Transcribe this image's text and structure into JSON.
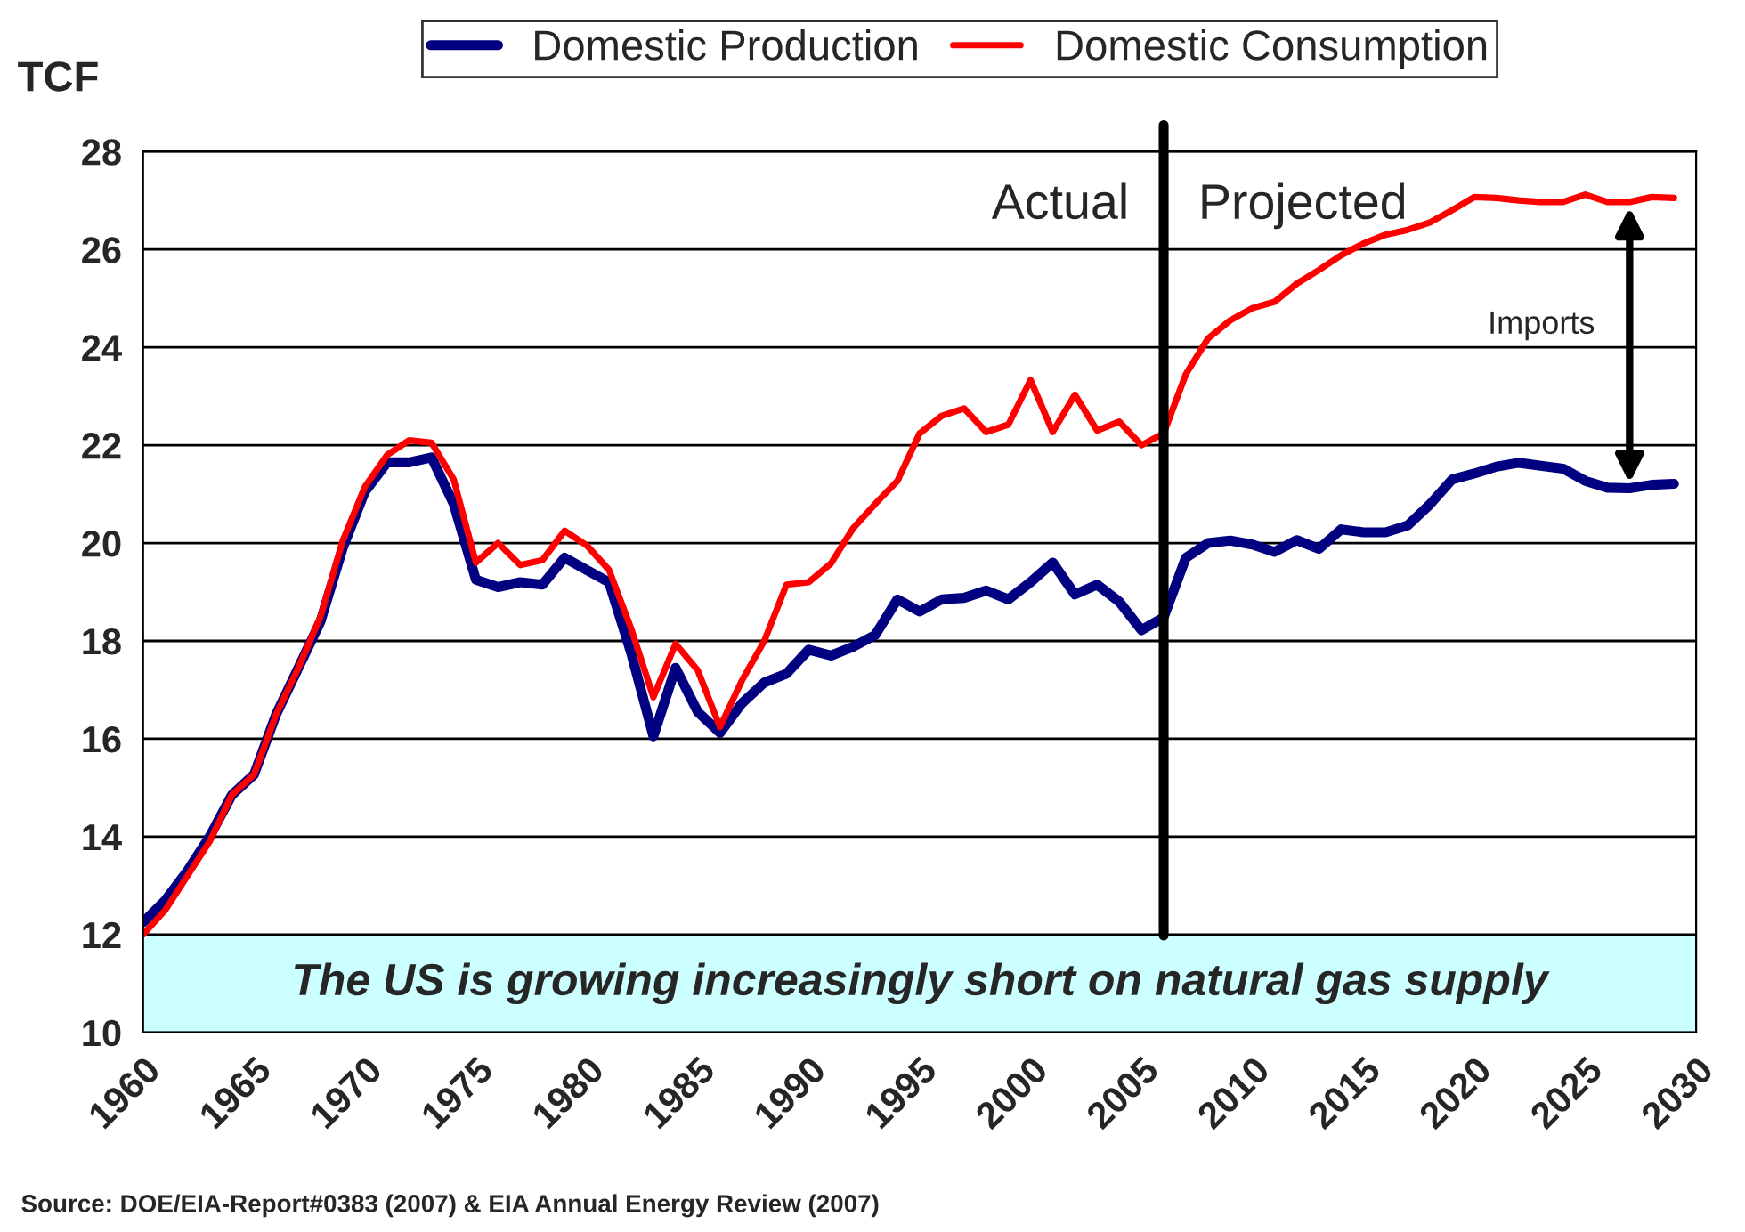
{
  "chart_data": {
    "type": "line",
    "ylabel": "TCF",
    "x": [
      1960,
      1961,
      1962,
      1963,
      1964,
      1965,
      1966,
      1967,
      1968,
      1969,
      1970,
      1971,
      1972,
      1973,
      1974,
      1975,
      1976,
      1977,
      1978,
      1979,
      1980,
      1981,
      1982,
      1983,
      1984,
      1985,
      1986,
      1987,
      1988,
      1989,
      1990,
      1991,
      1992,
      1993,
      1994,
      1995,
      1996,
      1997,
      1998,
      1999,
      2000,
      2001,
      2002,
      2003,
      2004,
      2005,
      2006,
      2007,
      2008,
      2009,
      2010,
      2011,
      2012,
      2013,
      2014,
      2015,
      2016,
      2017,
      2018,
      2019,
      2020,
      2021,
      2022,
      2023,
      2024,
      2025,
      2026,
      2027,
      2028,
      2029
    ],
    "series": [
      {
        "name": "Domestic Production",
        "color": "#000080",
        "values": [
          12.25,
          12.7,
          13.3,
          14.0,
          14.85,
          15.27,
          16.5,
          17.45,
          18.4,
          19.9,
          21.05,
          21.65,
          21.65,
          21.75,
          20.8,
          19.25,
          19.1,
          19.2,
          19.15,
          19.7,
          19.45,
          19.2,
          17.75,
          16.05,
          17.45,
          16.55,
          16.12,
          16.73,
          17.15,
          17.33,
          17.82,
          17.7,
          17.88,
          18.12,
          18.85,
          18.6,
          18.85,
          18.88,
          19.03,
          18.85,
          19.2,
          19.6,
          18.95,
          19.15,
          18.8,
          18.22,
          18.48,
          19.7,
          20.0,
          20.05,
          19.97,
          19.82,
          20.06,
          19.88,
          20.28,
          20.22,
          20.22,
          20.36,
          20.79,
          21.3,
          21.42,
          21.56,
          21.64,
          21.58,
          21.52,
          21.27,
          21.13,
          21.12,
          21.19,
          21.21
        ]
      },
      {
        "name": "Domestic Consumption",
        "color": "#ff0000",
        "values": [
          12.0,
          12.5,
          13.2,
          13.9,
          14.85,
          15.27,
          16.5,
          17.45,
          18.5,
          20.05,
          21.15,
          21.8,
          22.1,
          22.05,
          21.3,
          19.6,
          20.0,
          19.55,
          19.65,
          20.25,
          19.95,
          19.45,
          18.25,
          16.85,
          17.94,
          17.4,
          16.24,
          17.2,
          18.0,
          19.15,
          19.2,
          19.58,
          20.3,
          20.8,
          21.27,
          22.24,
          22.6,
          22.75,
          22.27,
          22.42,
          23.33,
          22.27,
          23.03,
          22.3,
          22.48,
          22.0,
          22.24,
          23.45,
          24.18,
          24.55,
          24.8,
          24.93,
          25.3,
          25.58,
          25.88,
          26.12,
          26.3,
          26.4,
          26.55,
          26.8,
          27.07,
          27.05,
          27.0,
          26.97,
          26.97,
          27.12,
          26.97,
          26.97,
          27.07,
          27.05
        ]
      }
    ],
    "xlim": [
      1960,
      2030
    ],
    "xticks": [
      1960,
      1965,
      1970,
      1975,
      1980,
      1985,
      1990,
      1995,
      2000,
      2005,
      2010,
      2015,
      2020,
      2025,
      2030
    ],
    "ylim": [
      10,
      28
    ],
    "yticks": [
      10,
      12,
      14,
      16,
      18,
      20,
      22,
      24,
      26,
      28
    ],
    "grid": "y",
    "legend": "top",
    "marker": "none",
    "line_style": "solid",
    "ref_lines": [
      {
        "axis": "x",
        "value": 2006,
        "color": "#000000"
      }
    ],
    "bands": [
      {
        "axis": "y",
        "from": 10,
        "to": 12,
        "label": "The US is growing increasingly short on natural gas supply",
        "color": "#ccffff"
      }
    ],
    "annotations": [
      "Actual",
      "Projected",
      "Imports",
      "Source: DOE/EIA-Report#0383 (2007) & EIA Annual Energy Review (2007)"
    ]
  }
}
